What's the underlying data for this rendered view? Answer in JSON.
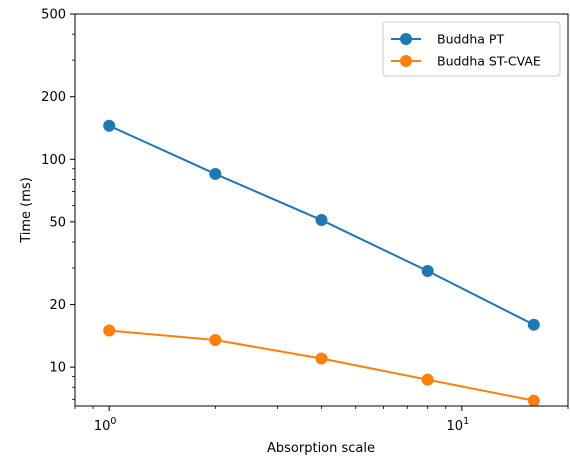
{
  "chart_data": {
    "type": "line",
    "xlabel": "Absorption scale",
    "ylabel": "Time (ms)",
    "xscale": "log",
    "yscale": "log",
    "xlim": [
      0.8,
      20
    ],
    "ylim": [
      6.5,
      500
    ],
    "grid": false,
    "legend_position": "top-right",
    "x_major_ticks": [
      {
        "value": 1,
        "base": "10",
        "exp": "0"
      },
      {
        "value": 10,
        "base": "10",
        "exp": "1"
      }
    ],
    "x_minor_ticks": [
      0.8,
      0.9,
      2,
      3,
      4,
      5,
      6,
      7,
      8,
      9,
      20
    ],
    "y_ticks": [
      {
        "value": 10,
        "label": "10"
      },
      {
        "value": 20,
        "label": "20"
      },
      {
        "value": 50,
        "label": "50"
      },
      {
        "value": 100,
        "label": "100"
      },
      {
        "value": 200,
        "label": "200"
      },
      {
        "value": 500,
        "label": "500"
      }
    ],
    "y_minor_ticks": [
      7,
      8,
      9,
      30,
      40,
      60,
      70,
      80,
      90,
      300,
      400
    ],
    "x": [
      1,
      2,
      4,
      8,
      16
    ],
    "series": [
      {
        "name": "Buddha PT",
        "color": "#1f77b4",
        "values": [
          145,
          85,
          51,
          29,
          16
        ]
      },
      {
        "name": "Buddha ST-CVAE",
        "color": "#ff7f0e",
        "values": [
          15,
          13.5,
          11,
          8.7,
          6.9
        ]
      }
    ]
  }
}
